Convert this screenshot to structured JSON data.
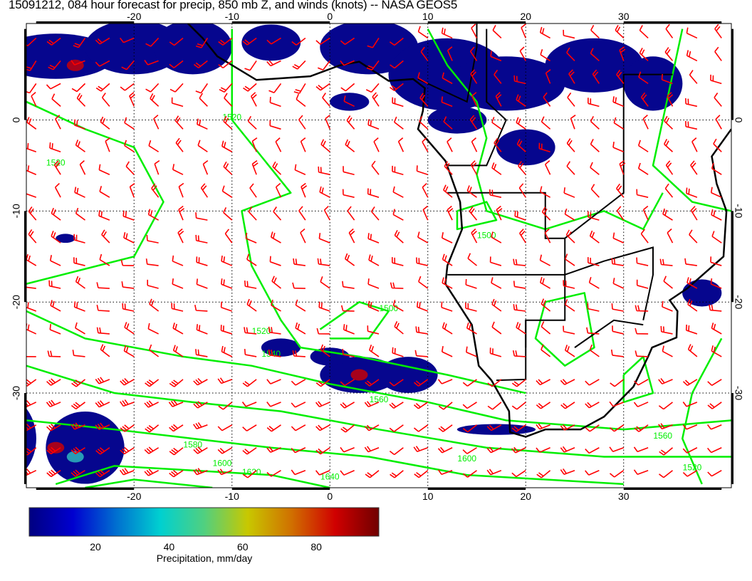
{
  "title": "15091212, 084 hour forecast for precip, 850 mb Z, and winds (knots) -- NASA GEOS5",
  "map": {
    "lon_range": [
      -31,
      41
    ],
    "lat_range": [
      -40.4,
      10.6
    ],
    "lon_ticks": [
      "-20",
      "-10",
      "0",
      "10",
      "20",
      "30"
    ],
    "lon_tick_values": [
      -20,
      -10,
      0,
      10,
      20,
      30
    ],
    "lat_ticks": [
      "0",
      "-10",
      "-20",
      "-30"
    ],
    "lat_tick_values": [
      0,
      -10,
      -20,
      -30
    ],
    "grid": "dotted",
    "contour_labels": [
      "1520",
      "1520",
      "1500",
      "1500",
      "1520",
      "1540",
      "1560",
      "1580",
      "1600",
      "1620",
      "1640",
      "1600",
      "1560",
      "1520"
    ],
    "colors": {
      "contour": "#00ee00",
      "wind_barb": "#ff0000",
      "coast": "#000000",
      "precip_low": "#00008a"
    }
  },
  "colorbar": {
    "label": "Precipitation, mm/day",
    "ticks": [
      "20",
      "40",
      "60",
      "80"
    ],
    "tick_values": [
      20,
      40,
      60,
      80
    ],
    "range": [
      2,
      97
    ],
    "colors": [
      "#000080",
      "#0000d0",
      "#0070d0",
      "#00d0d0",
      "#50d080",
      "#c8c800",
      "#d07000",
      "#d00000",
      "#700000"
    ]
  }
}
